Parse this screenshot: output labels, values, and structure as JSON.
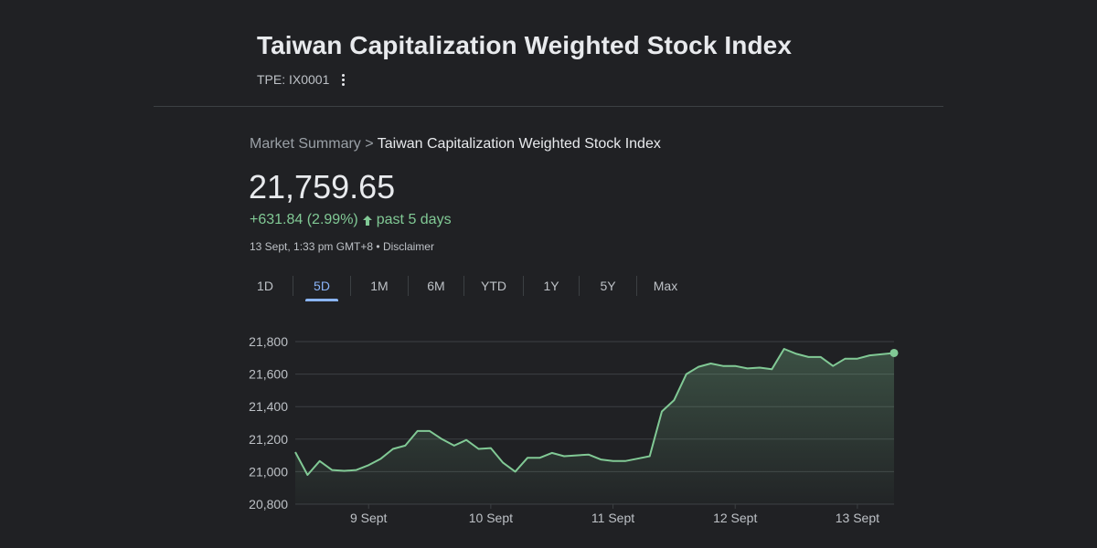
{
  "header": {
    "title": "Taiwan Capitalization Weighted Stock Index",
    "ticker": "TPE: IX0001",
    "more_icon": "more-vert-icon"
  },
  "breadcrumb": {
    "parent": "Market Summary",
    "separator": ">",
    "current": "Taiwan Capitalization Weighted Stock Index"
  },
  "quote": {
    "price": "21,759.65",
    "change": "+631.84 (2.99%)",
    "direction_icon": "arrow-up-icon",
    "period": "past 5 days",
    "timestamp": "13 Sept, 1:33 pm GMT+8 • ",
    "disclaimer": "Disclaimer"
  },
  "tabs": [
    {
      "label": "1D",
      "active": false
    },
    {
      "label": "5D",
      "active": true
    },
    {
      "label": "1M",
      "active": false
    },
    {
      "label": "6M",
      "active": false
    },
    {
      "label": "YTD",
      "active": false
    },
    {
      "label": "1Y",
      "active": false
    },
    {
      "label": "5Y",
      "active": false
    },
    {
      "label": "Max",
      "active": false
    }
  ],
  "colors": {
    "background": "#202124",
    "positive": "#81c995",
    "accent": "#8ab4f8",
    "grid": "#3c4043",
    "tick_text": "#bdc1c6"
  },
  "chart_data": {
    "type": "area",
    "ylim": [
      20800,
      21800
    ],
    "y_ticks": [
      {
        "value": 21800,
        "label": "21,800"
      },
      {
        "value": 21600,
        "label": "21,600"
      },
      {
        "value": 21400,
        "label": "21,400"
      },
      {
        "value": 21200,
        "label": "21,200"
      },
      {
        "value": 21000,
        "label": "21,000"
      },
      {
        "value": 20800,
        "label": "20,800"
      }
    ],
    "x_ticks": [
      {
        "day": 1,
        "label": "9 Sept"
      },
      {
        "day": 2,
        "label": "10 Sept"
      },
      {
        "day": 3,
        "label": "11 Sept"
      },
      {
        "day": 4,
        "label": "12 Sept"
      },
      {
        "day": 5,
        "label": "13 Sept"
      }
    ],
    "x_range": [
      0.4,
      5.3
    ],
    "grid": true,
    "series": [
      {
        "x": [
          0.4,
          0.5,
          0.6,
          0.7,
          0.8,
          0.9,
          1.0,
          1.1,
          1.2,
          1.3,
          1.4,
          1.5,
          1.6,
          1.7,
          1.8,
          1.9,
          2.0,
          2.1,
          2.2,
          2.3,
          2.4,
          2.5,
          2.6,
          2.7,
          2.8,
          2.9,
          3.0,
          3.1,
          3.2,
          3.3,
          3.4,
          3.5,
          3.6,
          3.7,
          3.8,
          3.9,
          4.0,
          4.1,
          4.2,
          4.3,
          4.4,
          4.5,
          4.6,
          4.7,
          4.8,
          4.9,
          5.0,
          5.1,
          5.3
        ],
        "values": [
          21120,
          20980,
          21065,
          21010,
          21005,
          21010,
          21040,
          21080,
          21140,
          21160,
          21250,
          21250,
          21200,
          21160,
          21195,
          21140,
          21145,
          21055,
          21000,
          21085,
          21085,
          21115,
          21095,
          21100,
          21105,
          21075,
          21065,
          21065,
          21080,
          21095,
          21370,
          21440,
          21600,
          21645,
          21665,
          21650,
          21650,
          21635,
          21640,
          21630,
          21755,
          21725,
          21705,
          21705,
          21650,
          21695,
          21695,
          21715,
          21730
        ]
      }
    ]
  }
}
